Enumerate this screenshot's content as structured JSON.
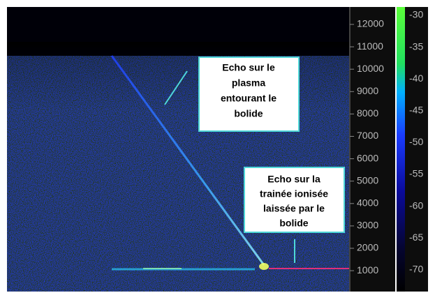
{
  "annotations": [
    {
      "lines": [
        "Echo sur le",
        "plasma",
        "entourant le",
        "bolide"
      ]
    },
    {
      "lines": [
        "Echo sur la",
        "trainée ionisée",
        "laissée par le",
        "bolide"
      ]
    }
  ],
  "frequency_labels": [
    "12000",
    "11000",
    "10000",
    "9000",
    "8000",
    "7000",
    "6000",
    "5000",
    "4000",
    "3000",
    "2000",
    "1000"
  ],
  "level_labels": [
    "-30",
    "-35",
    "-40",
    "-45",
    "-50",
    "-55",
    "-60",
    "-65",
    "-70"
  ]
}
